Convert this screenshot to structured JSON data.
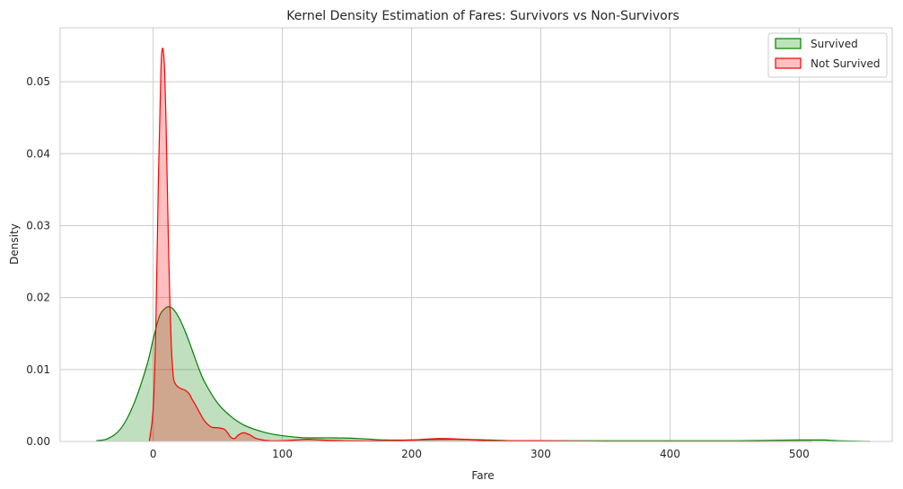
{
  "chart_data": {
    "type": "area",
    "title": "Kernel Density Estimation of Fares: Survivors vs Non-Survivors",
    "xlabel": "Fare",
    "ylabel": "Density",
    "xlim": [
      -72,
      572
    ],
    "ylim": [
      0,
      0.0575
    ],
    "xticks": [
      0,
      100,
      200,
      300,
      400,
      500
    ],
    "yticks": [
      0.0,
      0.01,
      0.02,
      0.03,
      0.04,
      0.05
    ],
    "xtick_labels": [
      "0",
      "100",
      "200",
      "300",
      "400",
      "500"
    ],
    "ytick_labels": [
      "0.00",
      "0.01",
      "0.02",
      "0.03",
      "0.04",
      "0.05"
    ],
    "grid": true,
    "legend_position": "top-right",
    "series": [
      {
        "name": "Survived",
        "color": "#008000",
        "fill": "#bde3b9",
        "x": [
          -44,
          -35,
          -25,
          -15,
          -5,
          0,
          5,
          10,
          13,
          16,
          20,
          25,
          30,
          35,
          40,
          50,
          60,
          70,
          80,
          90,
          100,
          110,
          120,
          140,
          160,
          180,
          200,
          220,
          240,
          260,
          280,
          300,
          350,
          400,
          450,
          500,
          510,
          520,
          530,
          555
        ],
        "values": [
          0.0001,
          0.0004,
          0.0018,
          0.0052,
          0.0105,
          0.0142,
          0.0175,
          0.0186,
          0.0187,
          0.0183,
          0.0172,
          0.0152,
          0.0128,
          0.0103,
          0.0082,
          0.0053,
          0.0035,
          0.0023,
          0.0016,
          0.0011,
          0.0008,
          0.0006,
          0.0005,
          0.0005,
          0.0004,
          0.0002,
          0.0002,
          0.0003,
          0.0003,
          0.0002,
          0.0001,
          0.0001,
          0.0001,
          0.0001,
          0.0001,
          0.0002,
          0.0002,
          0.0002,
          0.0001,
          0.0
        ]
      },
      {
        "name": "Not Survived",
        "color": "#ff0000",
        "fill": "#ffc0c0",
        "x": [
          -3,
          0,
          2,
          4,
          6,
          7,
          8,
          9,
          10,
          11,
          12,
          13,
          14,
          15,
          16,
          18,
          20,
          22,
          25,
          28,
          30,
          33,
          36,
          40,
          45,
          50,
          55,
          58,
          60,
          63,
          66,
          70,
          75,
          80,
          90,
          100,
          110,
          120,
          130,
          150,
          180,
          200,
          220,
          240,
          260,
          280,
          300,
          350,
          400,
          450,
          510
        ],
        "values": [
          0.0,
          0.0045,
          0.0155,
          0.036,
          0.0515,
          0.0545,
          0.054,
          0.051,
          0.044,
          0.035,
          0.026,
          0.019,
          0.0135,
          0.0103,
          0.0085,
          0.0078,
          0.0075,
          0.0073,
          0.0071,
          0.0066,
          0.0059,
          0.005,
          0.004,
          0.0028,
          0.002,
          0.0019,
          0.0017,
          0.0011,
          0.0006,
          0.0004,
          0.0009,
          0.0012,
          0.0009,
          0.0004,
          0.0001,
          0.0001,
          0.0002,
          0.0003,
          0.0002,
          0.0001,
          0.0001,
          0.0002,
          0.0004,
          0.0003,
          0.0001,
          0.0001,
          0.0001,
          0.0,
          0.0,
          0.0,
          0.0
        ]
      }
    ]
  }
}
